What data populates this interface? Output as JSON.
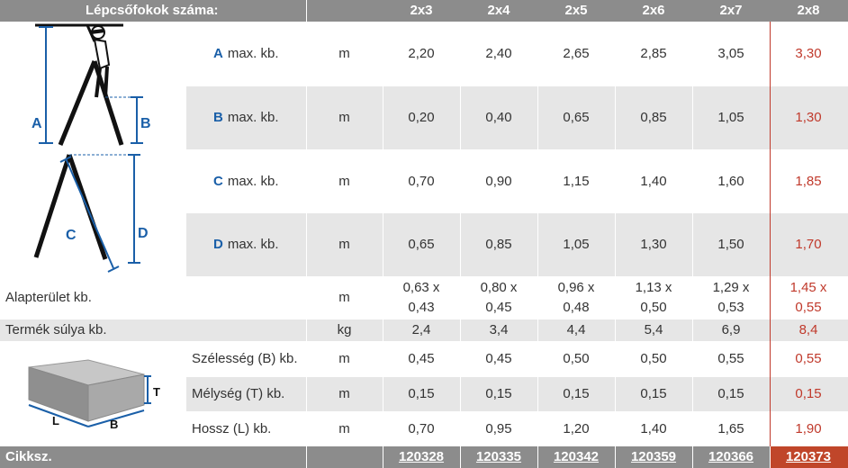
{
  "header": {
    "title": "Lépcsőfokok száma:",
    "columns": [
      "2x3",
      "2x4",
      "2x5",
      "2x6",
      "2x7",
      "2x8"
    ]
  },
  "ladder_labels": {
    "a": "A",
    "b": "B",
    "c": "C",
    "d": "D"
  },
  "rows": [
    {
      "letter": "A",
      "label": "max. kb.",
      "unit": "m",
      "values": [
        "2,20",
        "2,40",
        "2,65",
        "2,85",
        "3,05",
        "3,30"
      ]
    },
    {
      "letter": "B",
      "label": "max. kb.",
      "unit": "m",
      "values": [
        "0,20",
        "0,40",
        "0,65",
        "0,85",
        "1,05",
        "1,30"
      ]
    },
    {
      "letter": "C",
      "label": "max. kb.",
      "unit": "m",
      "values": [
        "0,70",
        "0,90",
        "1,15",
        "1,40",
        "1,60",
        "1,85"
      ]
    },
    {
      "letter": "D",
      "label": "max. kb.",
      "unit": "m",
      "values": [
        "0,65",
        "0,85",
        "1,05",
        "1,30",
        "1,50",
        "1,70"
      ]
    }
  ],
  "footprint": {
    "label": "Alapterület kb.",
    "unit": "m",
    "values": [
      [
        "0,63 x",
        "0,43"
      ],
      [
        "0,80 x",
        "0,45"
      ],
      [
        "0,96 x",
        "0,48"
      ],
      [
        "1,13 x",
        "0,50"
      ],
      [
        "1,29 x",
        "0,53"
      ],
      [
        "1,45 x",
        "0,55"
      ]
    ]
  },
  "weight": {
    "label": "Termék súlya kb.",
    "unit": "kg",
    "values": [
      "2,4",
      "3,4",
      "4,4",
      "5,4",
      "6,9",
      "8,4"
    ]
  },
  "box_labels": {
    "t": "T",
    "l": "L",
    "b": "B"
  },
  "packaging": [
    {
      "label": "Szélesség (B) kb.",
      "unit": "m",
      "values": [
        "0,45",
        "0,45",
        "0,50",
        "0,50",
        "0,55",
        "0,55"
      ]
    },
    {
      "label": "Mélység (T) kb.",
      "unit": "m",
      "values": [
        "0,15",
        "0,15",
        "0,15",
        "0,15",
        "0,15",
        "0,15"
      ]
    },
    {
      "label": "Hossz (L) kb.",
      "unit": "m",
      "values": [
        "0,70",
        "0,95",
        "1,20",
        "1,40",
        "1,65",
        "1,90"
      ]
    }
  ],
  "footer": {
    "label": "Cikksz.",
    "codes": [
      "120328",
      "120335",
      "120342",
      "120359",
      "120366",
      "120373"
    ]
  },
  "colors": {
    "header_grey": "#8c8c8c",
    "row_grey": "#e6e6e6",
    "accent_red": "#c0392b",
    "diagram_blue": "#1a5fa8"
  }
}
